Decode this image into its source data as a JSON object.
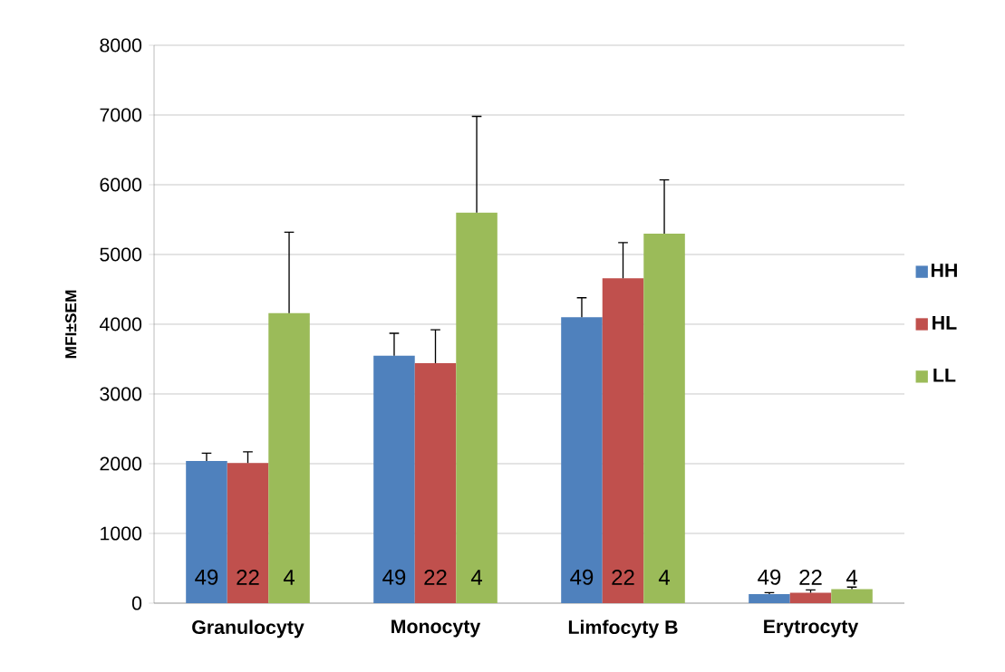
{
  "chart_data": {
    "type": "bar",
    "ylabel": "MFI±SEM",
    "categories": [
      "Granulocyty",
      "Monocyty",
      "Limfocyty B",
      "Erytrocyty"
    ],
    "series": [
      {
        "name": "HH",
        "color": "#4f81bd",
        "values": [
          2040,
          3550,
          4100,
          130
        ],
        "errors": [
          [
            2040,
            2150
          ],
          [
            3550,
            3870
          ],
          [
            4100,
            4380
          ],
          [
            130,
            150
          ]
        ]
      },
      {
        "name": "HL",
        "color": "#c0504d",
        "values": [
          2010,
          3440,
          4660,
          150
        ],
        "errors": [
          [
            2010,
            2170
          ],
          [
            3440,
            3920
          ],
          [
            4660,
            5170
          ],
          [
            150,
            190
          ]
        ]
      },
      {
        "name": "LL",
        "color": "#9bbb59",
        "values": [
          4160,
          5600,
          5300,
          200
        ],
        "errors": [
          [
            4160,
            5320
          ],
          [
            5600,
            6980
          ],
          [
            5300,
            6070
          ],
          [
            200,
            230
          ]
        ]
      }
    ],
    "annotations": [
      "49",
      "22",
      "4",
      "49",
      "22",
      "4",
      "49",
      "22",
      "4",
      "49",
      "22",
      "4"
    ],
    "ylim": [
      0,
      8000
    ],
    "yticks": [
      0,
      1000,
      2000,
      3000,
      4000,
      5000,
      6000,
      7000,
      8000
    ],
    "grid": "y",
    "legend": "right"
  }
}
